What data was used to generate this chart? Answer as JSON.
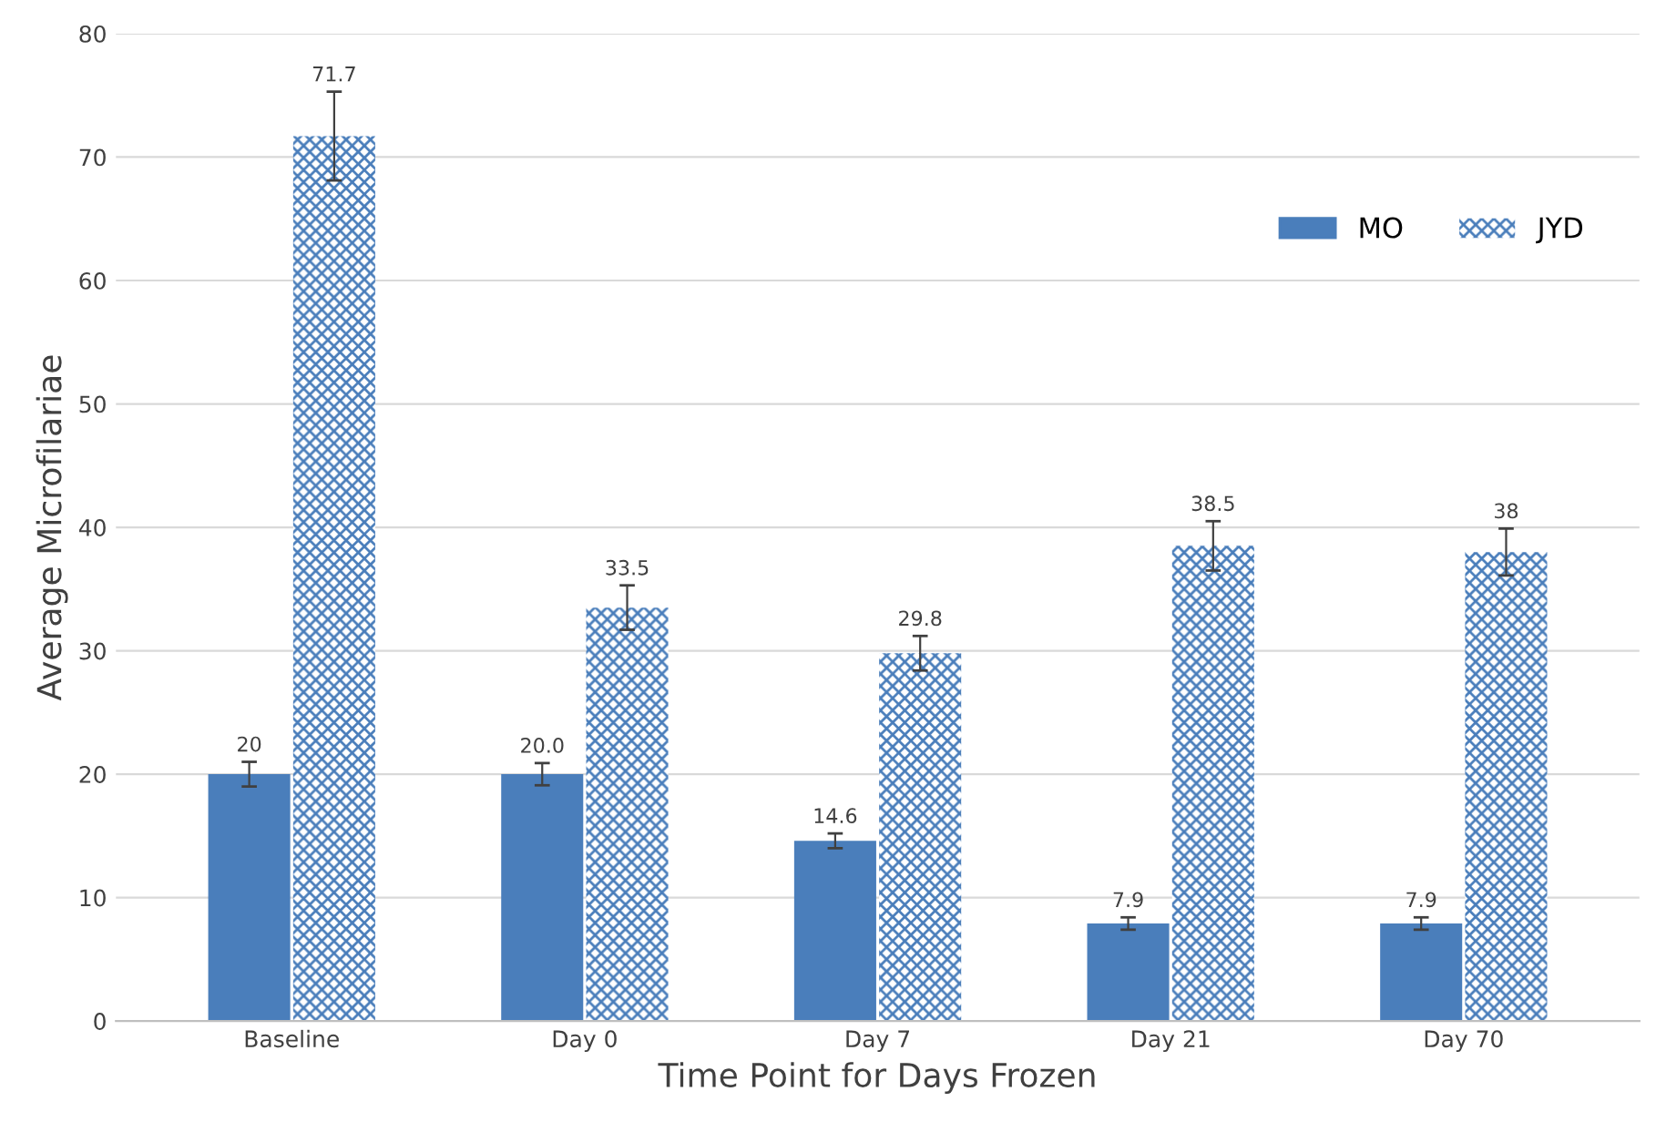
{
  "chart_data": {
    "type": "bar",
    "xlabel": "Time Point for Days Frozen",
    "ylabel": "Average Microfilariae",
    "categories": [
      "Baseline",
      "Day 0",
      "Day 7",
      "Day 21",
      "Day 70"
    ],
    "series": [
      {
        "name": "MO",
        "color": "#4a7ebb",
        "values": [
          20,
          20.0,
          14.6,
          7.9,
          7.9
        ],
        "errors": [
          1.0,
          0.9,
          0.6,
          0.5,
          0.5
        ],
        "value_labels": [
          "20",
          "20.0",
          "14.6",
          "7.9",
          "7.9"
        ]
      },
      {
        "name": "JYD",
        "color": "#4a7ebb",
        "values": [
          71.7,
          33.5,
          29.8,
          38.5,
          38
        ],
        "errors": [
          3.6,
          1.8,
          1.4,
          2.0,
          1.9
        ],
        "value_labels": [
          "71.7",
          "33.5",
          "29.8",
          "38.5",
          "38"
        ]
      }
    ],
    "ylim": [
      0,
      80
    ],
    "yticks": [
      0,
      10,
      20,
      30,
      40,
      50,
      60,
      70,
      80
    ],
    "grid": "y",
    "legend": "top right"
  }
}
